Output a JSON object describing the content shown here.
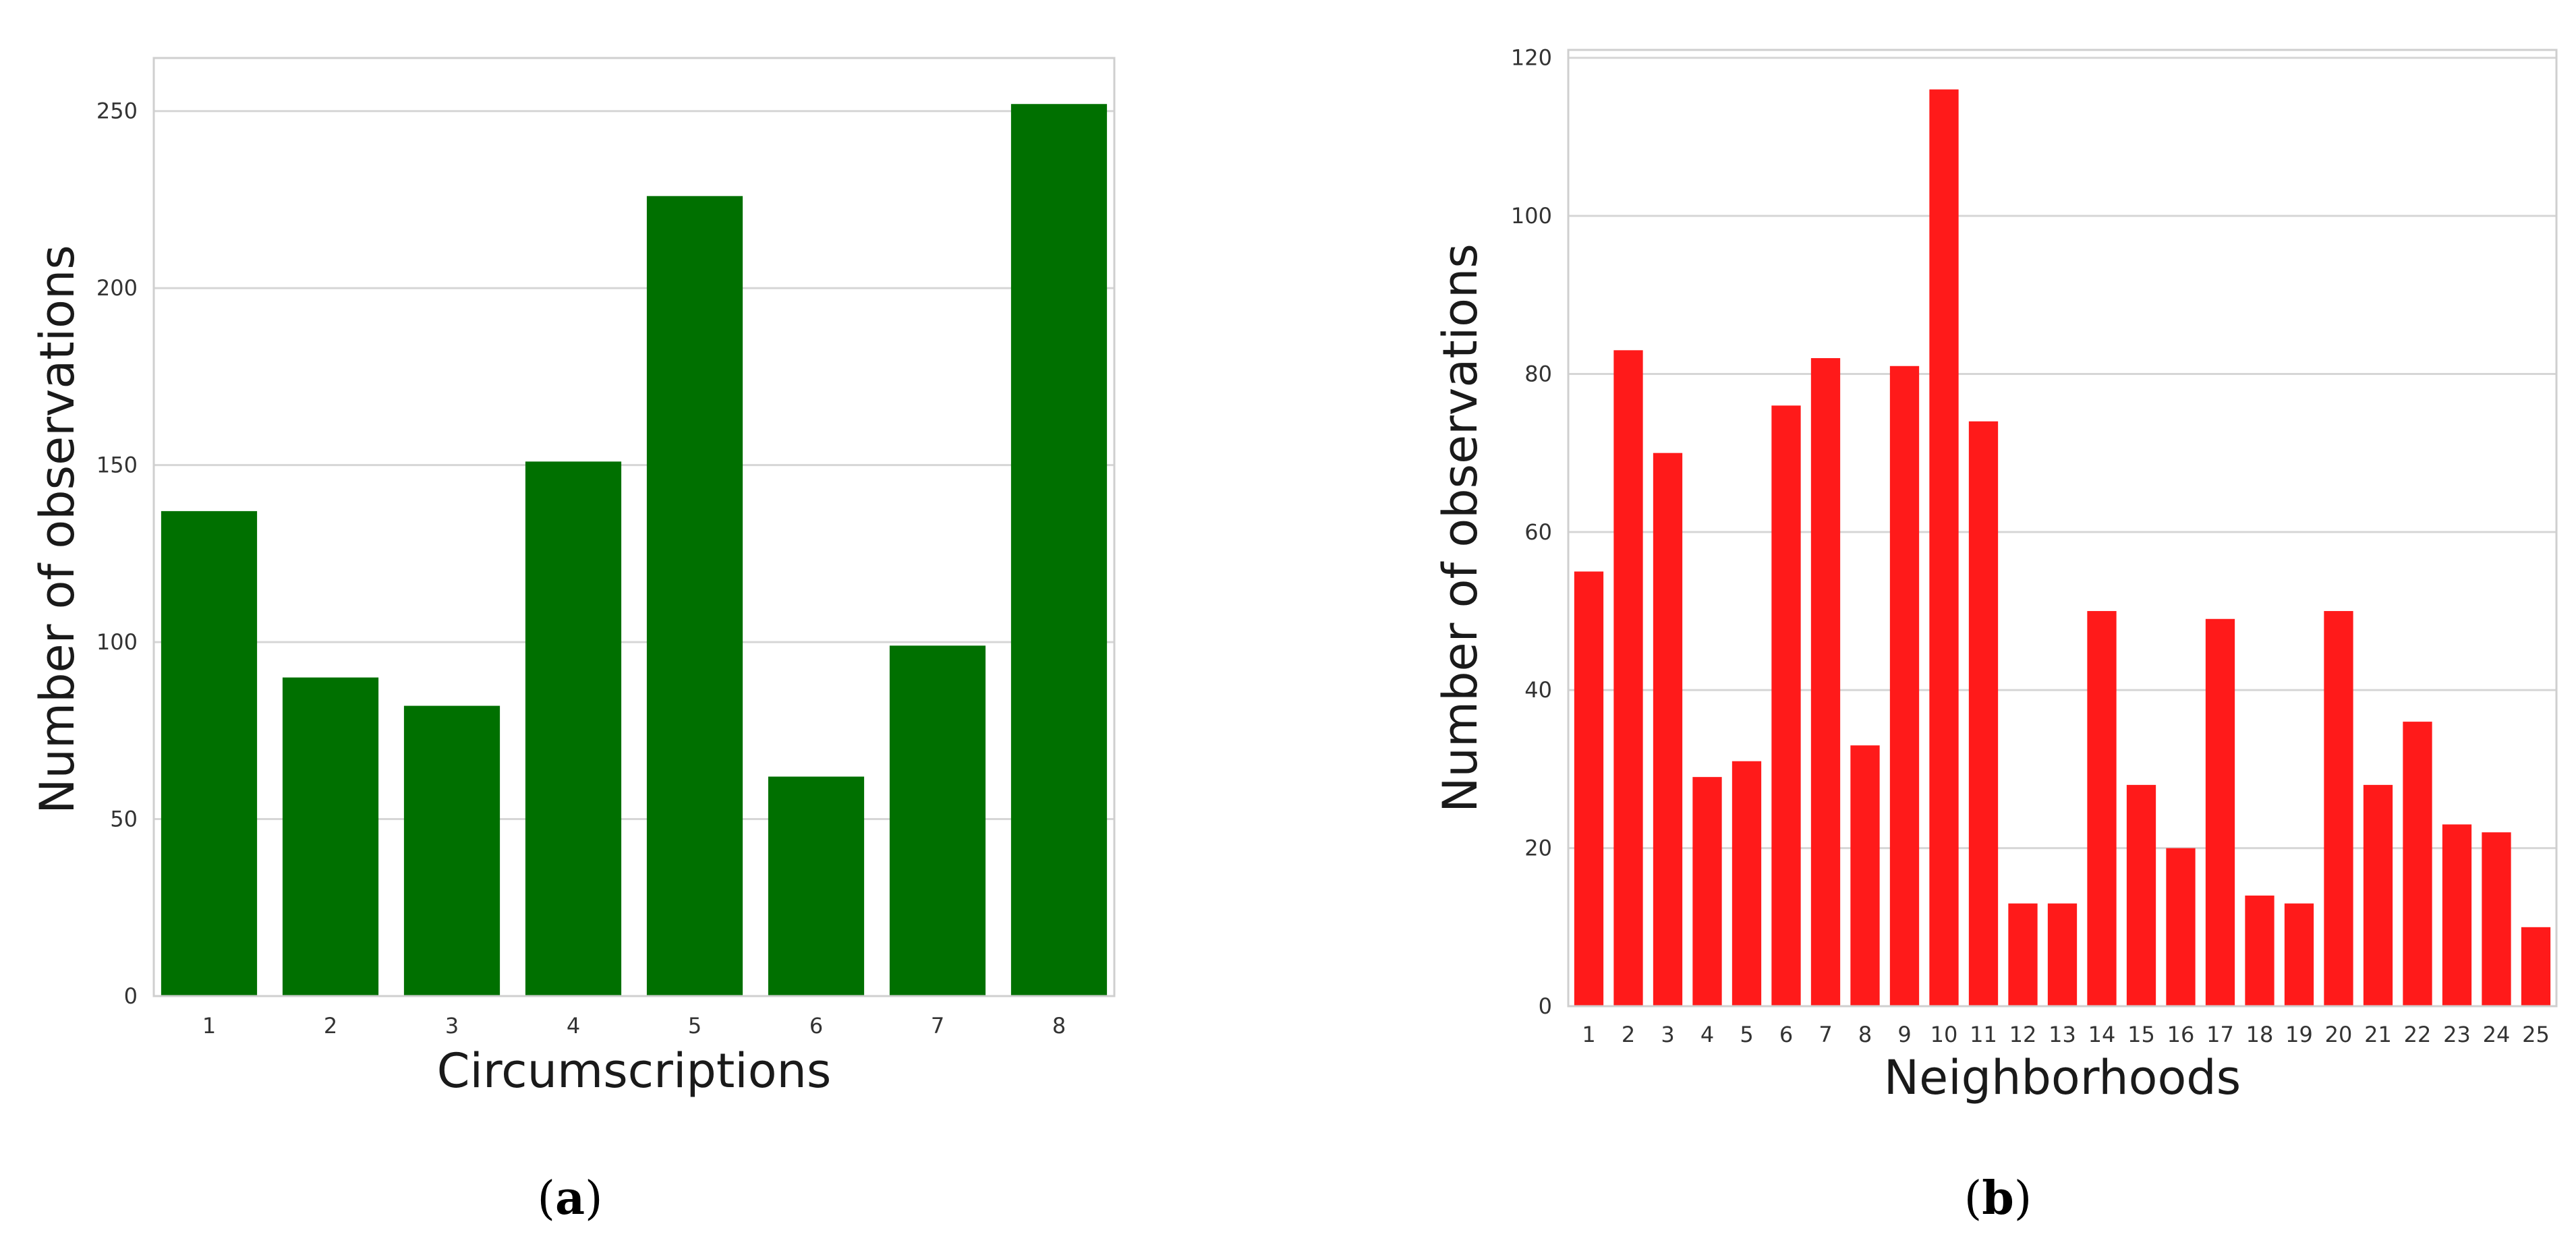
{
  "chart_data": [
    {
      "type": "bar",
      "panel_label": "a",
      "xlabel": "Circumscriptions",
      "ylabel": "Number of observations",
      "categories": [
        "1",
        "2",
        "3",
        "4",
        "5",
        "6",
        "7",
        "8"
      ],
      "values": [
        137,
        90,
        82,
        151,
        226,
        62,
        99,
        252
      ],
      "ylim": [
        0,
        265
      ],
      "yticks": [
        0,
        50,
        100,
        150,
        200,
        250
      ],
      "color": "#007000",
      "grid": true
    },
    {
      "type": "bar",
      "panel_label": "b",
      "xlabel": "Neighborhoods",
      "ylabel": "Number of observations",
      "categories": [
        "1",
        "2",
        "3",
        "4",
        "5",
        "6",
        "7",
        "8",
        "9",
        "10",
        "11",
        "12",
        "13",
        "14",
        "15",
        "16",
        "17",
        "18",
        "19",
        "20",
        "21",
        "22",
        "23",
        "24",
        "25"
      ],
      "values": [
        55,
        83,
        70,
        29,
        31,
        76,
        82,
        33,
        81,
        116,
        74,
        13,
        13,
        50,
        28,
        20,
        49,
        14,
        13,
        50,
        28,
        36,
        23,
        22,
        10
      ],
      "ylim": [
        0,
        121
      ],
      "yticks": [
        0,
        20,
        40,
        60,
        80,
        100,
        120
      ],
      "color": "#ff1a1a",
      "grid": true
    }
  ]
}
